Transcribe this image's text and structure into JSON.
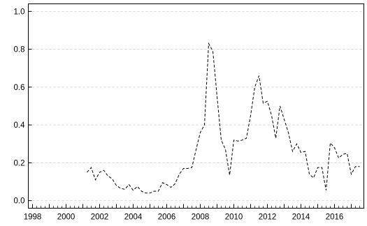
{
  "chart_data": {
    "type": "line",
    "title": "",
    "xlabel": "",
    "ylabel": "",
    "xlim": [
      1997.75,
      2017.75
    ],
    "ylim": [
      -0.04,
      1.04
    ],
    "grid": "horizontal-dashed",
    "legend": "none",
    "line_style": "dashed",
    "line_color": "#000000",
    "x_ticks": [
      {
        "value": 1998,
        "label": "1998"
      },
      {
        "value": 2000,
        "label": "2000"
      },
      {
        "value": 2002,
        "label": "2002"
      },
      {
        "value": 2004,
        "label": "2004"
      },
      {
        "value": 2006,
        "label": "2006"
      },
      {
        "value": 2008,
        "label": "2008"
      },
      {
        "value": 2010,
        "label": "2010"
      },
      {
        "value": 2012,
        "label": "2012"
      },
      {
        "value": 2014,
        "label": "2014"
      },
      {
        "value": 2016,
        "label": "2016"
      }
    ],
    "y_ticks": [
      {
        "value": 0.0,
        "label": "0.0"
      },
      {
        "value": 0.2,
        "label": "0.2"
      },
      {
        "value": 0.4,
        "label": "0.4"
      },
      {
        "value": 0.6,
        "label": "0.6"
      },
      {
        "value": 0.8,
        "label": "0.8"
      },
      {
        "value": 1.0,
        "label": "1.0"
      }
    ],
    "series": [
      {
        "x": [
          2001.25,
          2001.5,
          2001.75,
          2002.0,
          2002.25,
          2002.5,
          2002.75,
          2003.0,
          2003.25,
          2003.5,
          2003.75,
          2004.0,
          2004.25,
          2004.5,
          2004.75,
          2005.0,
          2005.25,
          2005.5,
          2005.75,
          2006.0,
          2006.25,
          2006.5,
          2006.75,
          2007.0,
          2007.25,
          2007.5,
          2007.75,
          2008.0,
          2008.25,
          2008.5,
          2008.75,
          2009.0,
          2009.25,
          2009.5,
          2009.75,
          2010.0,
          2010.25,
          2010.5,
          2010.75,
          2011.0,
          2011.25,
          2011.5,
          2011.75,
          2012.0,
          2012.25,
          2012.5,
          2012.75,
          2013.0,
          2013.25,
          2013.5,
          2013.75,
          2014.0,
          2014.25,
          2014.5,
          2014.75,
          2015.0,
          2015.25,
          2015.5,
          2015.75,
          2016.0,
          2016.25,
          2016.5,
          2016.75,
          2017.0,
          2017.25,
          2017.5
        ],
        "y": [
          0.15,
          0.175,
          0.11,
          0.15,
          0.16,
          0.13,
          0.115,
          0.08,
          0.065,
          0.06,
          0.085,
          0.055,
          0.075,
          0.05,
          0.04,
          0.04,
          0.05,
          0.05,
          0.095,
          0.085,
          0.07,
          0.09,
          0.14,
          0.17,
          0.17,
          0.175,
          0.27,
          0.36,
          0.4,
          0.83,
          0.79,
          0.55,
          0.32,
          0.27,
          0.135,
          0.32,
          0.315,
          0.32,
          0.33,
          0.45,
          0.6,
          0.66,
          0.515,
          0.525,
          0.45,
          0.33,
          0.5,
          0.43,
          0.36,
          0.26,
          0.3,
          0.255,
          0.26,
          0.14,
          0.12,
          0.175,
          0.175,
          0.055,
          0.305,
          0.28,
          0.225,
          0.245,
          0.25,
          0.14,
          0.18,
          0.18
        ]
      }
    ]
  }
}
